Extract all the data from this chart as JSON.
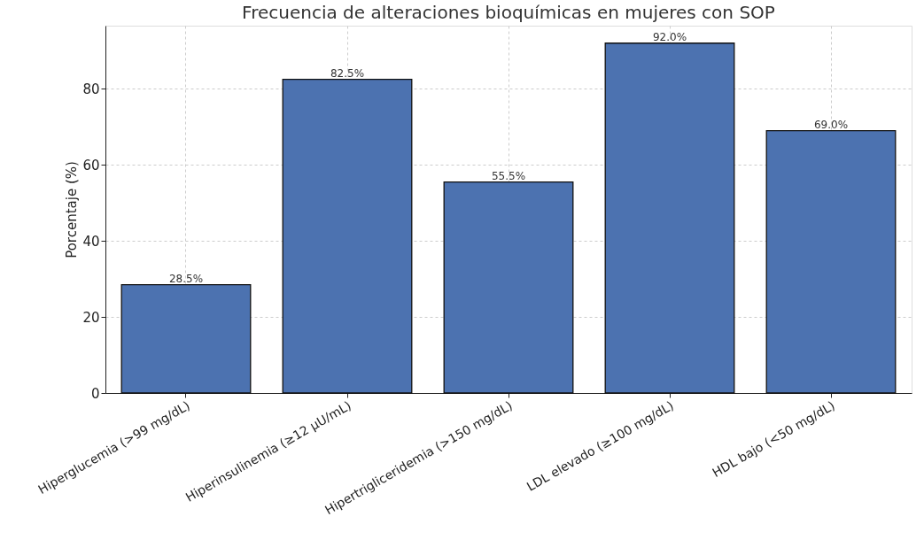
{
  "chart_data": {
    "type": "bar",
    "title": "Frecuencia de alteraciones bioquímicas en mujeres con SOP",
    "ylabel": "Porcentaje (%)",
    "categories": [
      "Hiperglucemia (>99 mg/dL)",
      "Hiperinsulinemia (≥12 µU/mL)",
      "Hipertrigliceridemia (>150 mg/dL)",
      "LDL elevado (≥100 mg/dL)",
      "HDL bajo (<50 mg/dL)"
    ],
    "values": [
      28.5,
      82.5,
      55.5,
      92.0,
      69.0
    ],
    "value_labels": [
      "28.5%",
      "82.5%",
      "55.5%",
      "92.0%",
      "69.0%"
    ],
    "color": "#4c72b0",
    "ylim": [
      0,
      96.6
    ],
    "yticks": [
      0,
      20,
      40,
      60,
      80
    ],
    "grid": true
  }
}
